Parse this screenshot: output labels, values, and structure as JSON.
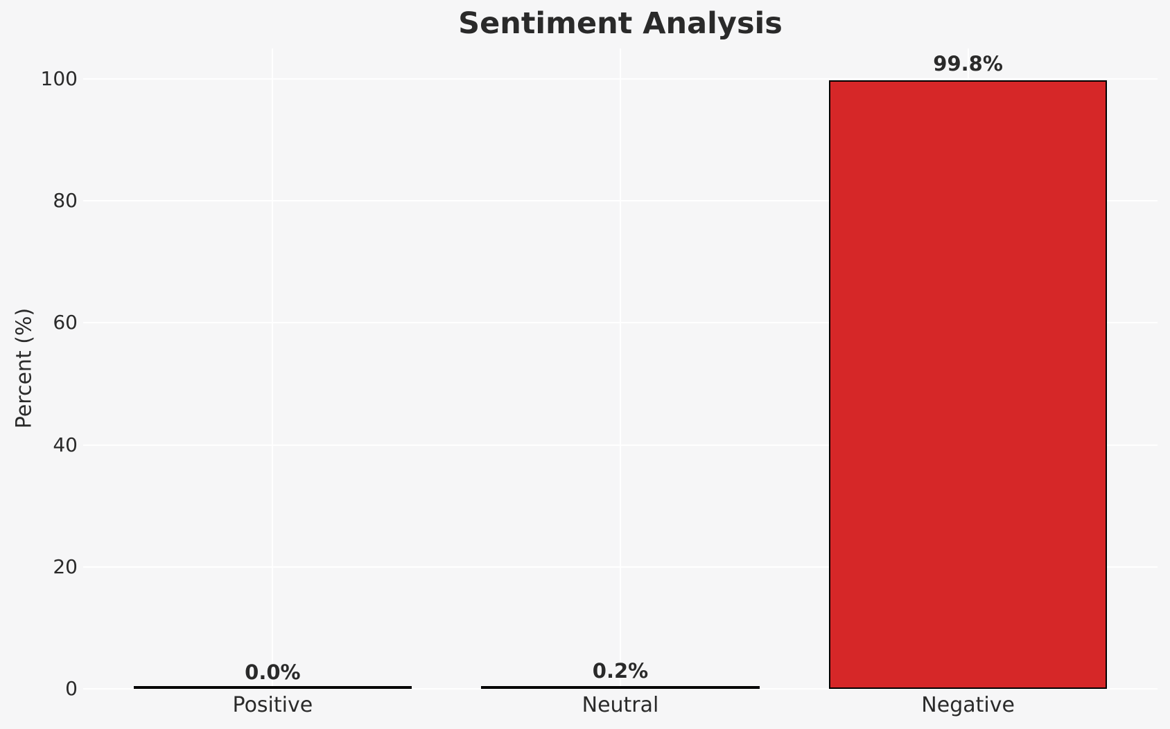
{
  "figure": {
    "title": "Sentiment Analysis"
  },
  "colors": {
    "background": "#f6f6f7",
    "grid": "#ffffff",
    "text": "#2a2a2a",
    "bar_fill": "#d62728",
    "bar_edge": "#000000"
  },
  "chart_data": {
    "type": "bar",
    "title": "Sentiment Analysis",
    "categories": [
      "Positive",
      "Neutral",
      "Negative"
    ],
    "values": [
      0.0,
      0.2,
      99.8
    ],
    "value_labels": [
      "0.0%",
      "0.2%",
      "99.8%"
    ],
    "xlabel": "",
    "ylabel": "Percent (%)",
    "ylim": [
      0,
      105
    ],
    "yticks": [
      0,
      20,
      40,
      60,
      80,
      100
    ],
    "grid": true,
    "legend_position": "none",
    "bar_color": "#d62728",
    "bar_edge_color": "#000000"
  }
}
